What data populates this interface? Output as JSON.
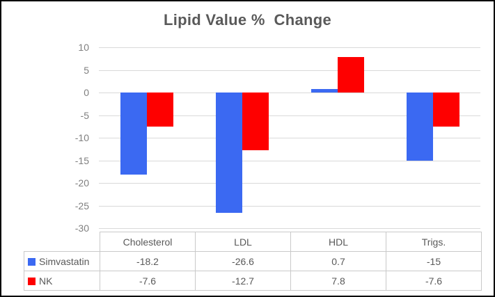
{
  "window": {
    "background": "#ffffff",
    "border_color": "#000000"
  },
  "chart_data": {
    "type": "bar",
    "title": "Lipid Value %  Change",
    "title_color": "#595959",
    "categories": [
      "Cholesterol",
      "LDL",
      "HDL",
      "Trigs."
    ],
    "series": [
      {
        "name": "Simvastatin",
        "color": "#3b69f2",
        "values": [
          -18.2,
          -26.6,
          0.7,
          -15
        ]
      },
      {
        "name": "NK",
        "color": "#fe0000",
        "values": [
          -7.6,
          -12.7,
          7.8,
          -7.6
        ]
      }
    ],
    "xlabel": "",
    "ylabel": "",
    "ylim": [
      -30,
      10
    ],
    "yticks": [
      10,
      5,
      0,
      -5,
      -10,
      -15,
      -20,
      -25,
      -30
    ],
    "grid": true,
    "gridline_color": "#d9d9d9",
    "axis_label_color": "#7f7f7f",
    "legend_position": "data-table-left",
    "data_table_shown": true,
    "table_text_color": "#595959",
    "table_border_color": "#c9c9c9"
  }
}
